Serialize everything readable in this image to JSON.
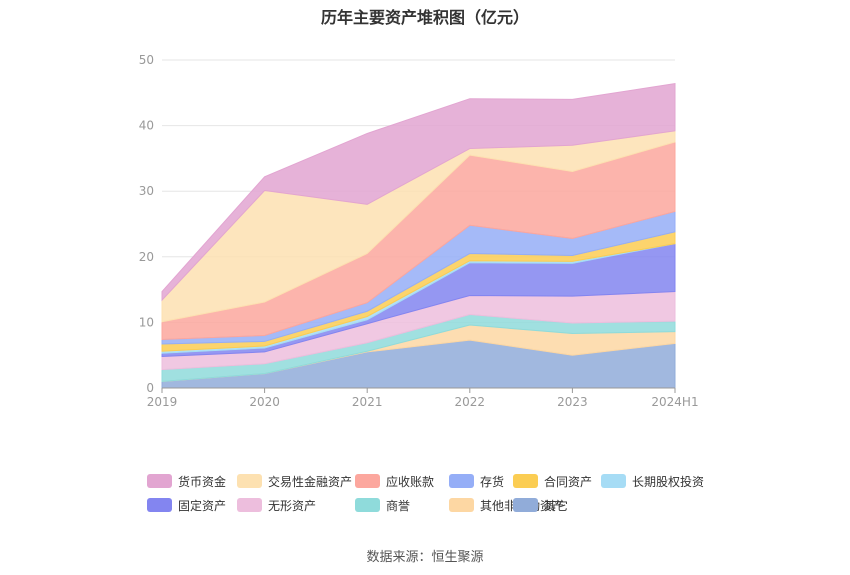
{
  "chart_data": {
    "type": "area",
    "stacked": true,
    "title": "历年主要资产堆积图（亿元）",
    "categories": [
      "2019",
      "2020",
      "2021",
      "2022",
      "2023",
      "2024H1"
    ],
    "ylim": [
      0,
      50
    ],
    "yticks": [
      0,
      10,
      20,
      30,
      40,
      50
    ],
    "grid": true,
    "legend_position": "bottom",
    "series": [
      {
        "name": "其它",
        "color": "#91acd9",
        "values": [
          1.0,
          2.2,
          5.5,
          7.3,
          5.0,
          6.8
        ]
      },
      {
        "name": "其他非流动资产",
        "color": "#fdd7a3",
        "values": [
          0.0,
          0.0,
          0.1,
          2.3,
          3.3,
          1.8
        ]
      },
      {
        "name": "商誉",
        "color": "#8fdbdb",
        "values": [
          1.8,
          1.5,
          1.3,
          1.6,
          1.6,
          1.6
        ]
      },
      {
        "name": "无形资产",
        "color": "#edbedd",
        "values": [
          2.0,
          1.8,
          2.9,
          2.9,
          4.1,
          4.5
        ]
      },
      {
        "name": "固定资产",
        "color": "#8385f0",
        "values": [
          0.5,
          0.6,
          0.6,
          5.0,
          5.0,
          7.3
        ]
      },
      {
        "name": "长期股权投资",
        "color": "#a6dcf5",
        "values": [
          0.3,
          0.3,
          0.5,
          0.3,
          0.3,
          0.0
        ]
      },
      {
        "name": "合同资产",
        "color": "#fbcd53",
        "values": [
          1.1,
          0.7,
          0.8,
          1.1,
          0.9,
          1.8
        ]
      },
      {
        "name": "存货",
        "color": "#95aef7",
        "values": [
          0.7,
          0.9,
          1.3,
          4.3,
          2.6,
          3.1
        ]
      },
      {
        "name": "应收账款",
        "color": "#fca79e",
        "values": [
          2.7,
          5.1,
          7.5,
          10.7,
          10.2,
          10.6
        ]
      },
      {
        "name": "交易性金融资产",
        "color": "#fde1b1",
        "values": [
          3.3,
          17.0,
          7.5,
          1.0,
          4.0,
          1.7
        ]
      },
      {
        "name": "货币资金",
        "color": "#e2a5d1",
        "values": [
          1.3,
          2.1,
          10.8,
          7.6,
          7.0,
          7.2
        ]
      }
    ],
    "legend_order": [
      "货币资金",
      "交易性金融资产",
      "应收账款",
      "存货",
      "合同资产",
      "长期股权投资",
      "固定资产",
      "无形资产",
      "商誉",
      "其他非流动资产",
      "其它"
    ],
    "source": "数据来源：恒生聚源"
  }
}
